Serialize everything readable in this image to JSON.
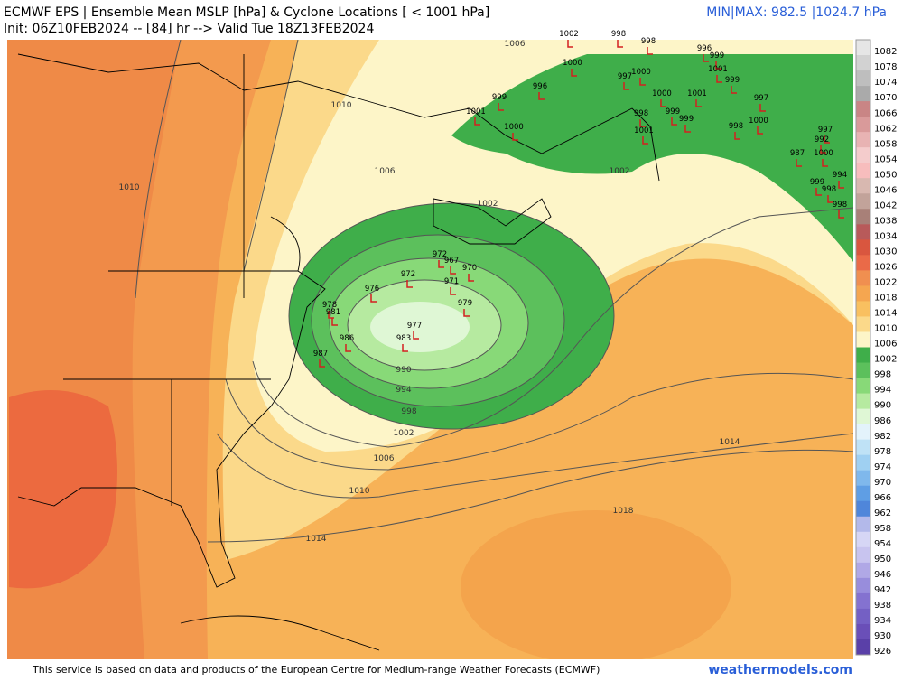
{
  "header": {
    "title": "ECMWF EPS | Ensemble Mean MSLP [hPa] & Cyclone Locations [ < 1001 hPa]",
    "subtitle": "Init: 06Z10FEB2024 -- [84] hr --> Valid Tue 18Z13FEB2024",
    "minmax": "MIN|MAX: 982.5 |1024.7 hPa"
  },
  "footer": {
    "credit": "This service is based on data and products of the European Centre for Medium-range Weather Forecasts (ECMWF)",
    "site": "weathermodels.com"
  },
  "colorbar": {
    "labels": [
      1082,
      1078,
      1074,
      1070,
      1066,
      1062,
      1058,
      1054,
      1050,
      1046,
      1042,
      1038,
      1034,
      1030,
      1026,
      1022,
      1018,
      1014,
      1010,
      1006,
      1002,
      998,
      994,
      990,
      986,
      982,
      978,
      974,
      970,
      966,
      962,
      958,
      954,
      950,
      946,
      942,
      938,
      934,
      930,
      926
    ],
    "colors": [
      "#e6e6e6",
      "#d2d2d2",
      "#bebebe",
      "#aaaaaa",
      "#c98585",
      "#d99a9a",
      "#e8b3b3",
      "#f4cccc",
      "#f7bdbd",
      "#d8b8b0",
      "#c2a39a",
      "#a88078",
      "#b85a5a",
      "#d9563f",
      "#ea6a48",
      "#f08f50",
      "#f5a650",
      "#f9c060",
      "#fbd98a",
      "#fdf5c8",
      "#3fae4a",
      "#5cc05c",
      "#88d978",
      "#b6eaa0",
      "#dff7d5",
      "#e3f3fb",
      "#bfe2f6",
      "#9fd0f2",
      "#7fb8ec",
      "#5f9ee4",
      "#4f86da",
      "#b3b9ea",
      "#d6d6f5",
      "#c8c4ef",
      "#b0a8e6",
      "#988ddc",
      "#8472d0",
      "#7460c4",
      "#6a4fb8",
      "#5a40a8"
    ]
  },
  "contours": [
    "990",
    "994",
    "998",
    "1002",
    "1006",
    "1010",
    "1014",
    "1014",
    "1018",
    "1010",
    "1010",
    "1006",
    "1006",
    "1002",
    "1002"
  ],
  "cyclones": [
    "1002",
    "998",
    "998",
    "996",
    "999",
    "1001",
    "999",
    "997",
    "1000",
    "998",
    "997",
    "992",
    "1000",
    "987",
    "994",
    "999",
    "998",
    "998",
    "1001",
    "998",
    "1001",
    "999",
    "999",
    "1000",
    "997",
    "1000",
    "1000",
    "999",
    "1001",
    "1000",
    "996",
    "972",
    "967",
    "970",
    "971",
    "972",
    "976",
    "979",
    "978",
    "981",
    "986",
    "983",
    "987",
    "977"
  ]
}
